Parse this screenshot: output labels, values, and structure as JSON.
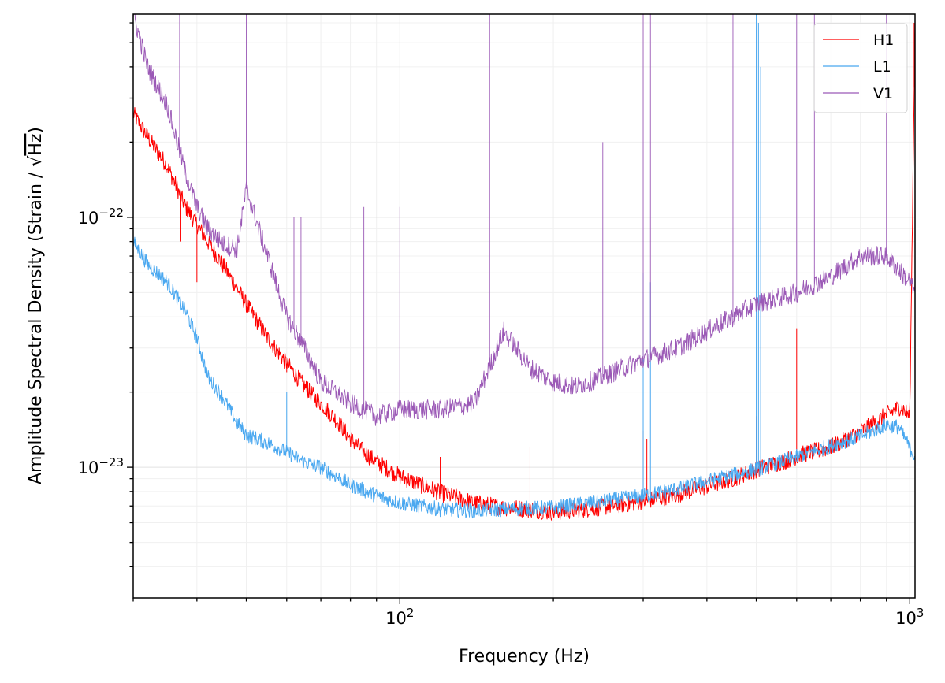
{
  "chart_data": {
    "type": "line",
    "title": "",
    "xlabel": "Frequency (Hz)",
    "ylabel_prefix": "Amplitude Spectral Density (Strain / ",
    "ylabel_radical": "√",
    "ylabel_unit": "Hz",
    "ylabel_suffix": ")",
    "x_scale": "log",
    "y_scale": "log",
    "xlim": [
      30,
      1024
    ],
    "ylim": [
      3e-24,
      6.5e-22
    ],
    "grid": true,
    "legend_position": "top-right",
    "x_ticks": [
      {
        "value": 100,
        "base": "10",
        "exp": "2"
      },
      {
        "value": 1000,
        "base": "10",
        "exp": "3"
      }
    ],
    "y_ticks": [
      {
        "value": 1e-23,
        "base": "10",
        "exp": "−23"
      },
      {
        "value": 1e-22,
        "base": "10",
        "exp": "−22"
      }
    ],
    "series": [
      {
        "name": "H1",
        "color": "#ff0000",
        "x": [
          30,
          32,
          35,
          38,
          42,
          46,
          50,
          55,
          60,
          65,
          70,
          75,
          80,
          85,
          90,
          100,
          110,
          120,
          140,
          160,
          180,
          200,
          230,
          260,
          300,
          350,
          400,
          450,
          500,
          560,
          620,
          700,
          780,
          850,
          900,
          960,
          1000,
          1024
        ],
        "y": [
          2.6e-22,
          2.1e-22,
          1.6e-22,
          1.1e-22,
          8e-23,
          6e-23,
          4.5e-23,
          3.3e-23,
          2.6e-23,
          2.1e-23,
          1.8e-23,
          1.55e-23,
          1.3e-23,
          1.15e-23,
          1.05e-23,
          9.2e-24,
          8.5e-24,
          7.9e-24,
          7.2e-24,
          6.9e-24,
          6.8e-24,
          6.6e-24,
          6.8e-24,
          7e-24,
          7.3e-24,
          7.8e-24,
          8.4e-24,
          9e-24,
          9.8e-24,
          1.05e-23,
          1.13e-23,
          1.2e-23,
          1.35e-23,
          1.5e-23,
          1.62e-23,
          1.75e-23,
          1.6e-23,
          6e-22
        ],
        "lines": [
          {
            "x": 37.2,
            "peak": 8e-23
          },
          {
            "x": 40,
            "peak": 5.5e-23
          },
          {
            "x": 60,
            "peak": 2.4e-23
          },
          {
            "x": 66,
            "peak": 2.2e-23
          },
          {
            "x": 120,
            "peak": 1.1e-23
          },
          {
            "x": 180,
            "peak": 1.2e-23
          },
          {
            "x": 300,
            "peak": 1.4e-23
          },
          {
            "x": 305,
            "peak": 1.3e-23
          },
          {
            "x": 500,
            "peak": 1.6e-23
          },
          {
            "x": 600,
            "peak": 3.6e-23
          },
          {
            "x": 1020,
            "peak": 6e-22
          }
        ]
      },
      {
        "name": "L1",
        "color": "#4aa8f0",
        "x": [
          30,
          32,
          35,
          38,
          40,
          42,
          45,
          48,
          50,
          55,
          60,
          65,
          70,
          80,
          90,
          100,
          120,
          140,
          160,
          200,
          250,
          300,
          350,
          400,
          450,
          500,
          600,
          700,
          800,
          900,
          950,
          1000,
          1024
        ],
        "y": [
          8e-23,
          6.5e-23,
          5.5e-23,
          4.2e-23,
          3.3e-23,
          2.3e-23,
          1.9e-23,
          1.5e-23,
          1.35e-23,
          1.25e-23,
          1.15e-23,
          1.05e-23,
          1e-23,
          8.5e-24,
          7.7e-24,
          7.2e-24,
          6.8e-24,
          6.7e-24,
          6.8e-24,
          6.9e-24,
          7.3e-24,
          7.7e-24,
          8.2e-24,
          8.8e-24,
          9.3e-24,
          9.8e-24,
          1.1e-23,
          1.22e-23,
          1.33e-23,
          1.48e-23,
          1.45e-23,
          1.2e-23,
          1.1e-23
        ],
        "lines": [
          {
            "x": 60,
            "peak": 2e-23
          },
          {
            "x": 300,
            "peak": 6e-23
          },
          {
            "x": 310,
            "peak": 5.5e-23
          },
          {
            "x": 500,
            "peak": 6.5e-22
          },
          {
            "x": 505,
            "peak": 6e-22
          },
          {
            "x": 510,
            "peak": 4e-22
          }
        ]
      },
      {
        "name": "V1",
        "color": "#9b59b6",
        "x": [
          30,
          32,
          35,
          38,
          40,
          42,
          45,
          48,
          50,
          55,
          60,
          65,
          70,
          80,
          90,
          100,
          120,
          140,
          160,
          180,
          200,
          220,
          250,
          300,
          350,
          400,
          450,
          500,
          600,
          700,
          800,
          900,
          1000,
          1024
        ],
        "y": [
          6.5e-22,
          4e-22,
          2.8e-22,
          1.5e-22,
          1.1e-22,
          9e-23,
          7.8e-23,
          7.5e-23,
          1.3e-22,
          7e-23,
          4e-23,
          3e-23,
          2.2e-23,
          1.8e-23,
          1.6e-23,
          1.7e-23,
          1.7e-23,
          1.8e-23,
          3.5e-23,
          2.5e-23,
          2.2e-23,
          2.1e-23,
          2.3e-23,
          2.7e-23,
          3e-23,
          3.5e-23,
          4e-23,
          4.5e-23,
          5e-23,
          5.8e-23,
          7e-23,
          7e-23,
          5.5e-23,
          5e-23
        ],
        "lines": [
          {
            "x": 37,
            "peak": 6.5e-22
          },
          {
            "x": 50,
            "peak": 6.5e-22
          },
          {
            "x": 62,
            "peak": 1e-22
          },
          {
            "x": 64,
            "peak": 1e-22
          },
          {
            "x": 85,
            "peak": 1.1e-22
          },
          {
            "x": 100,
            "peak": 1.1e-22
          },
          {
            "x": 150,
            "peak": 6.5e-22
          },
          {
            "x": 250,
            "peak": 2e-22
          },
          {
            "x": 300,
            "peak": 6.5e-22
          },
          {
            "x": 310,
            "peak": 6.5e-22
          },
          {
            "x": 450,
            "peak": 6.5e-22
          },
          {
            "x": 600,
            "peak": 6.5e-22
          },
          {
            "x": 650,
            "peak": 6.5e-22
          },
          {
            "x": 900,
            "peak": 6.5e-22
          }
        ]
      }
    ]
  }
}
